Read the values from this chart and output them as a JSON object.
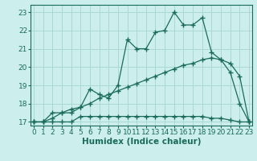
{
  "xlabel": "Humidex (Indice chaleur)",
  "bg_color": "#cceeed",
  "grid_color": "#aad8d6",
  "line_color": "#1a6b5a",
  "x_values": [
    0,
    1,
    2,
    3,
    4,
    5,
    6,
    7,
    8,
    9,
    10,
    11,
    12,
    13,
    14,
    15,
    16,
    17,
    18,
    19,
    20,
    21,
    22,
    23
  ],
  "line_max": [
    17.0,
    17.0,
    17.5,
    17.5,
    17.5,
    17.8,
    18.8,
    18.5,
    18.3,
    19.0,
    21.5,
    21.0,
    21.0,
    21.9,
    22.0,
    23.0,
    22.3,
    22.3,
    22.7,
    20.8,
    20.4,
    19.7,
    18.0,
    17.0
  ],
  "line_avg": [
    17.0,
    17.0,
    17.2,
    17.5,
    17.7,
    17.8,
    18.0,
    18.3,
    18.5,
    18.7,
    18.9,
    19.1,
    19.3,
    19.5,
    19.7,
    19.9,
    20.1,
    20.2,
    20.4,
    20.5,
    20.4,
    20.2,
    19.5,
    17.0
  ],
  "line_min": [
    17.0,
    17.0,
    17.0,
    17.0,
    17.0,
    17.3,
    17.3,
    17.3,
    17.3,
    17.3,
    17.3,
    17.3,
    17.3,
    17.3,
    17.3,
    17.3,
    17.3,
    17.3,
    17.3,
    17.2,
    17.2,
    17.1,
    17.0,
    17.0
  ],
  "ylim": [
    16.8,
    23.4
  ],
  "xlim": [
    -0.3,
    23.3
  ],
  "yticks": [
    17,
    18,
    19,
    20,
    21,
    22,
    23
  ],
  "xticks": [
    0,
    1,
    2,
    3,
    4,
    5,
    6,
    7,
    8,
    9,
    10,
    11,
    12,
    13,
    14,
    15,
    16,
    17,
    18,
    19,
    20,
    21,
    22,
    23
  ],
  "markersize": 4,
  "linewidth": 0.9,
  "tick_fontsize": 6.5,
  "xlabel_fontsize": 7.5
}
